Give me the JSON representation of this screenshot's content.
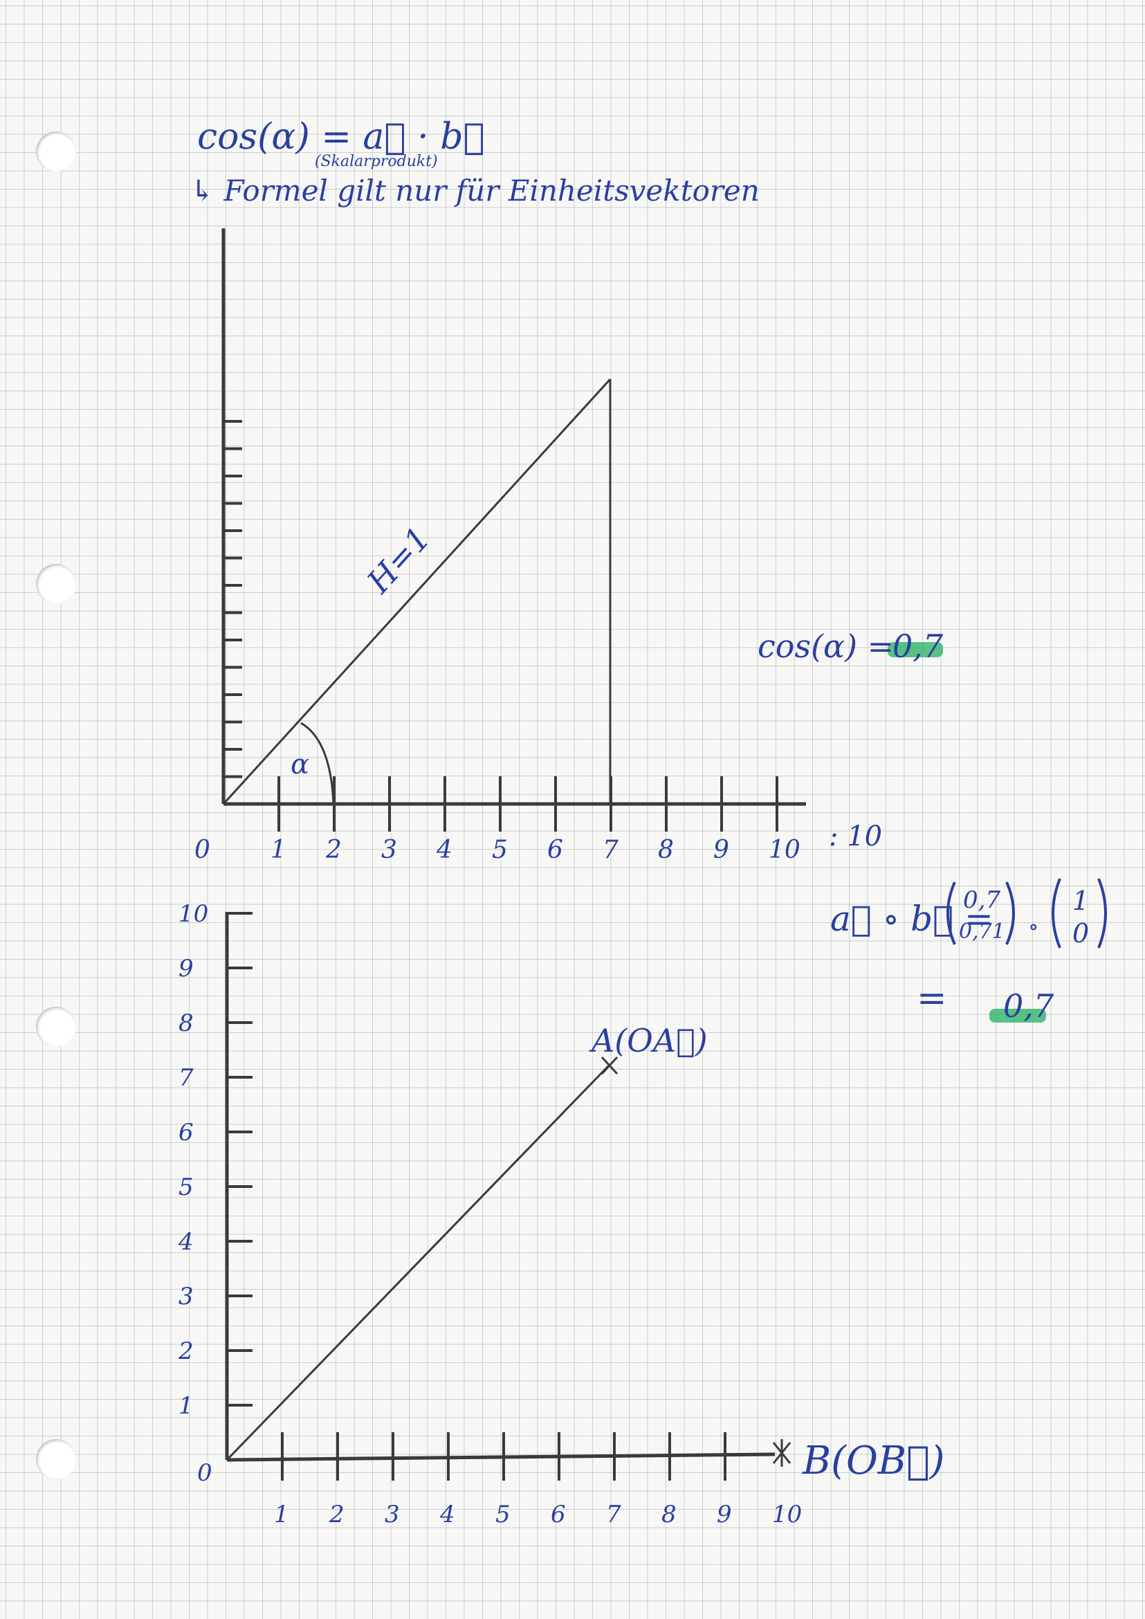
{
  "header": {
    "formula": "cos(α) = a⃗ · b⃗",
    "formula_note": "(Skalarprodukt)",
    "remark": "↳ Formel gilt nur für Einheitsvektoren"
  },
  "graph_top": {
    "hypotenuse_label": "H=1",
    "angle_label": "α",
    "x_ticks": [
      "0",
      "1",
      "2",
      "3",
      "4",
      "5",
      "6",
      "7",
      "8",
      "9",
      "10"
    ],
    "scale_note": ": 10",
    "result_label": "cos(α) =",
    "result_value": "0,7"
  },
  "graph_bottom": {
    "point_a_label": "A(OA⃗)",
    "point_b_label": "B(OB⃗)",
    "x_ticks": [
      "0",
      "1",
      "2",
      "3",
      "4",
      "5",
      "6",
      "7",
      "8",
      "9",
      "10"
    ],
    "y_ticks": [
      "1",
      "2",
      "3",
      "4",
      "5",
      "6",
      "7",
      "8",
      "9",
      "10"
    ]
  },
  "dot_product": {
    "lhs": "a⃗ ∘ b⃗ =",
    "vector_a": [
      "0,7",
      "0,71"
    ],
    "operator": "∘",
    "vector_b": [
      "1",
      "0"
    ],
    "equals": "=",
    "result": "0,7"
  },
  "colors": {
    "ink": "#2a3f9e",
    "pencil": "#3a3a3a",
    "highlight": "#2fb36a"
  }
}
